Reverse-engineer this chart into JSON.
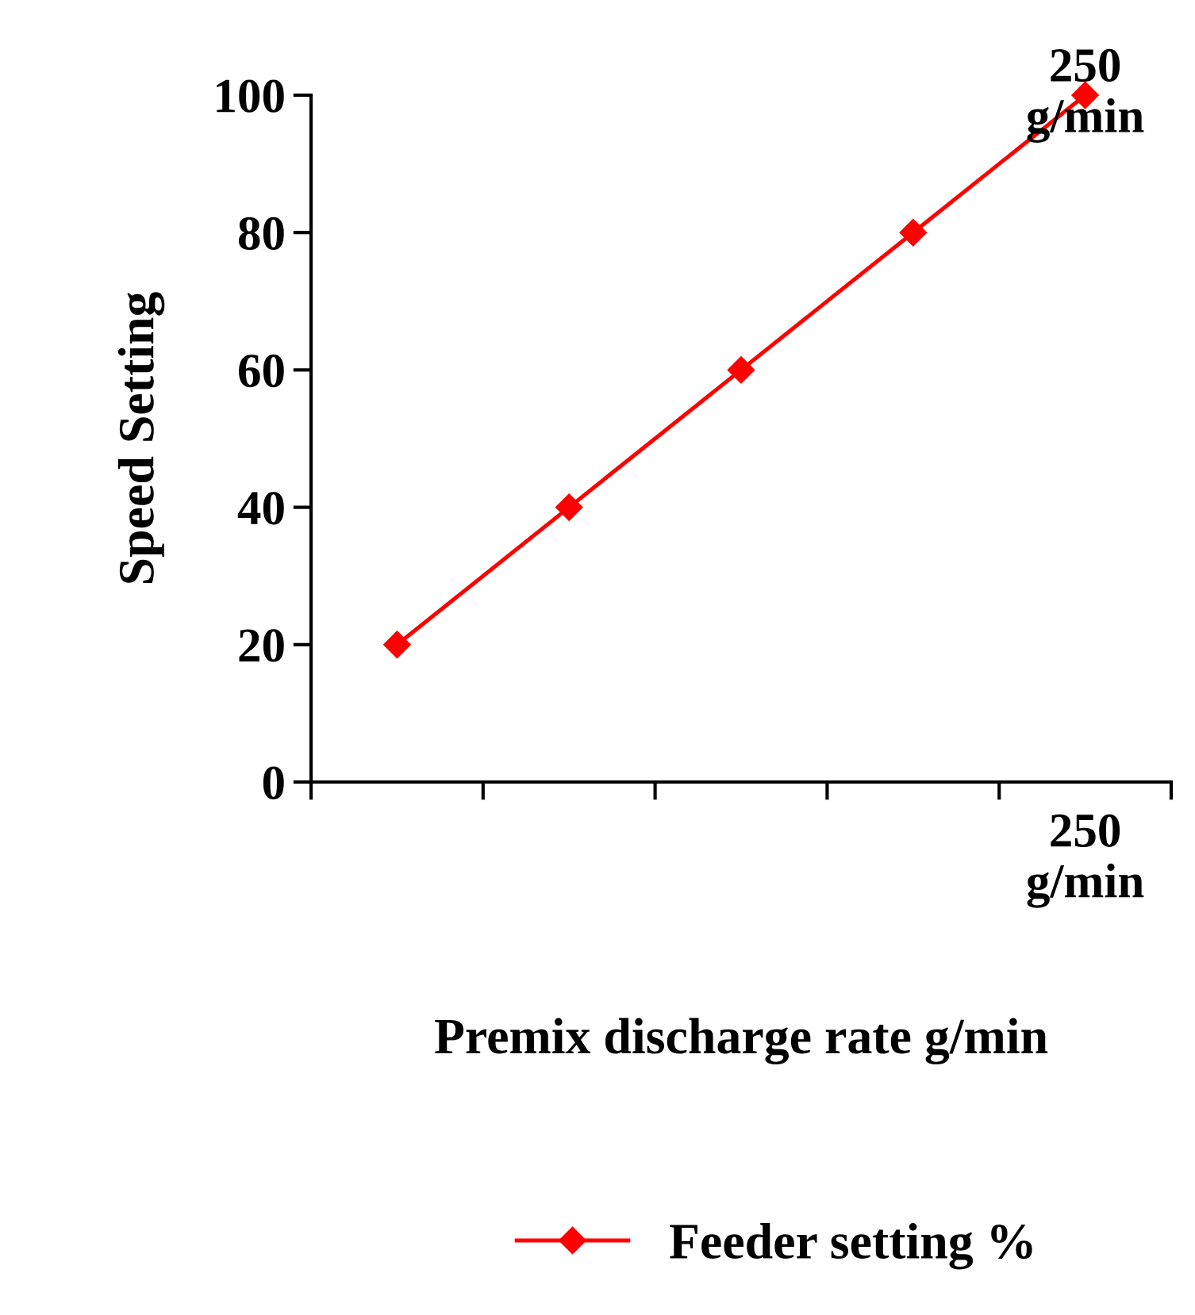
{
  "chart_data": {
    "type": "line",
    "xlabel": "Premix discharge rate g/min",
    "ylabel": "Speed Setting",
    "categories": [
      null,
      null,
      null,
      null,
      "250\ng/min"
    ],
    "series": [
      {
        "name": "Feeder setting %",
        "color": "#ff0000",
        "values": [
          20,
          40,
          60,
          80,
          100
        ]
      }
    ],
    "ylim": [
      0,
      100
    ],
    "yticks": [
      0,
      20,
      40,
      60,
      80,
      100
    ],
    "annotations": [
      {
        "text": "250\ng/min",
        "x": "250\ng/min",
        "y": 100
      }
    ],
    "grid": false,
    "legend": "bottom",
    "marker": "diamond",
    "line_style": "solid"
  }
}
